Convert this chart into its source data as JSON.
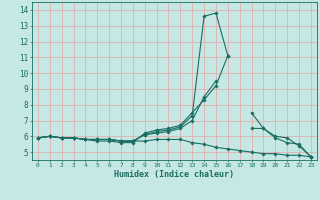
{
  "xlabel": "Humidex (Indice chaleur)",
  "background_color": "#c5e8e5",
  "grid_color": "#e0b0b0",
  "line_color": "#1a6e62",
  "xlim": [
    -0.5,
    23.5
  ],
  "ylim": [
    4.5,
    14.5
  ],
  "xticks": [
    0,
    1,
    2,
    3,
    4,
    5,
    6,
    7,
    8,
    9,
    10,
    11,
    12,
    13,
    14,
    15,
    16,
    17,
    18,
    19,
    20,
    21,
    22,
    23
  ],
  "yticks": [
    5,
    6,
    7,
    8,
    9,
    10,
    11,
    12,
    13,
    14
  ],
  "lines": [
    [
      5.9,
      6.0,
      5.9,
      5.9,
      5.8,
      5.7,
      5.7,
      5.6,
      5.6,
      6.2,
      6.4,
      6.5,
      6.7,
      7.5,
      8.3,
      9.2,
      11.1,
      null,
      7.5,
      6.5,
      6.0,
      5.9,
      5.4,
      4.7
    ],
    [
      5.9,
      6.0,
      5.9,
      5.9,
      5.8,
      5.8,
      5.8,
      5.7,
      5.7,
      6.1,
      6.3,
      6.4,
      6.6,
      7.3,
      13.6,
      13.8,
      11.1,
      null,
      null,
      null,
      null,
      null,
      null,
      null
    ],
    [
      5.9,
      6.0,
      5.9,
      5.9,
      5.8,
      5.8,
      5.8,
      5.7,
      5.7,
      6.1,
      6.2,
      6.3,
      6.5,
      7.0,
      8.5,
      9.5,
      null,
      null,
      6.5,
      6.5,
      5.9,
      5.6,
      5.5,
      4.7
    ],
    [
      5.9,
      6.0,
      5.9,
      5.9,
      5.8,
      5.8,
      5.8,
      5.7,
      5.7,
      5.7,
      5.8,
      5.8,
      5.8,
      5.6,
      5.5,
      5.3,
      5.2,
      5.1,
      5.0,
      4.9,
      4.9,
      4.8,
      4.8,
      4.7
    ]
  ]
}
